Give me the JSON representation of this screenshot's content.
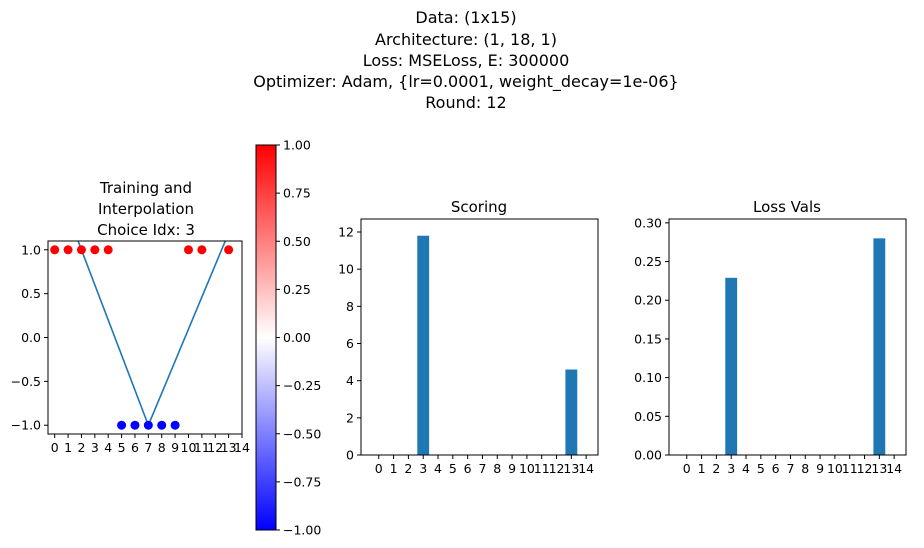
{
  "suptitle": [
    "Data: (1x15)",
    "Architecture: (1, 18, 1)",
    "Loss: MSELoss, E: 300000",
    "Optimizer: Adam, {lr=0.0001, weight_decay=1e-06}",
    "Round: 12"
  ],
  "colors": {
    "bar": "#1f77b4",
    "line": "#1f77b4",
    "positive": "#ff0000",
    "negative": "#0000ff",
    "axis": "#000000"
  },
  "chart_data": [
    {
      "type": "scatter",
      "title": [
        "Training and",
        "Interpolation",
        "Choice Idx: 3"
      ],
      "xlim": [
        -0.5,
        14
      ],
      "ylim": [
        -1.1,
        1.1
      ],
      "xticks": [
        "0",
        "1",
        "2",
        "3",
        "4",
        "5",
        "6",
        "7",
        "8",
        "9",
        "10",
        "11",
        "12",
        "13",
        "14"
      ],
      "yticks": [
        "1.0",
        "0.5",
        "0.0",
        "−0.5",
        "−1.0"
      ],
      "ytick_values": [
        1.0,
        0.5,
        0.0,
        -0.5,
        -1.0
      ],
      "points_x": [
        0,
        1,
        2,
        3,
        4,
        5,
        6,
        7,
        8,
        9,
        10,
        11,
        13
      ],
      "points_y": [
        1,
        1,
        1,
        1,
        1,
        -1,
        -1,
        -1,
        -1,
        -1,
        1,
        1,
        1
      ],
      "line_x": [
        1.75,
        7,
        12.75
      ],
      "line_y": [
        1.1,
        -1.0,
        1.1
      ]
    },
    {
      "type": "colorbar",
      "range": [
        -1.0,
        1.0
      ],
      "colormap": "bwr",
      "ticks": [
        "1.00",
        "0.75",
        "0.50",
        "0.25",
        "0.00",
        "−0.25",
        "−0.50",
        "−0.75",
        "−1.00"
      ],
      "tick_values": [
        1.0,
        0.75,
        0.5,
        0.25,
        0.0,
        -0.25,
        -0.5,
        -0.75,
        -1.0
      ]
    },
    {
      "type": "bar",
      "title": "Scoring",
      "categories": [
        "0",
        "1",
        "2",
        "3",
        "4",
        "5",
        "6",
        "7",
        "8",
        "9",
        "10",
        "11",
        "12",
        "13",
        "14"
      ],
      "values": [
        0,
        0,
        0,
        11.8,
        0,
        0,
        0,
        0,
        0,
        0,
        0,
        0,
        0,
        4.6,
        0
      ],
      "ylim": [
        0,
        12.7
      ],
      "yticks": [
        "0",
        "2",
        "4",
        "6",
        "8",
        "10",
        "12"
      ],
      "ytick_values": [
        0,
        2,
        4,
        6,
        8,
        10,
        12
      ]
    },
    {
      "type": "bar",
      "title": "Loss Vals",
      "categories": [
        "0",
        "1",
        "2",
        "3",
        "4",
        "5",
        "6",
        "7",
        "8",
        "9",
        "10",
        "11",
        "12",
        "13",
        "14"
      ],
      "values": [
        0,
        0,
        0,
        0.229,
        0,
        0,
        0,
        0,
        0,
        0,
        0,
        0,
        0,
        0.28,
        0
      ],
      "ylim": [
        0,
        0.305
      ],
      "yticks": [
        "0.00",
        "0.05",
        "0.10",
        "0.15",
        "0.20",
        "0.25",
        "0.30"
      ],
      "ytick_values": [
        0,
        0.05,
        0.1,
        0.15,
        0.2,
        0.25,
        0.3
      ]
    }
  ]
}
